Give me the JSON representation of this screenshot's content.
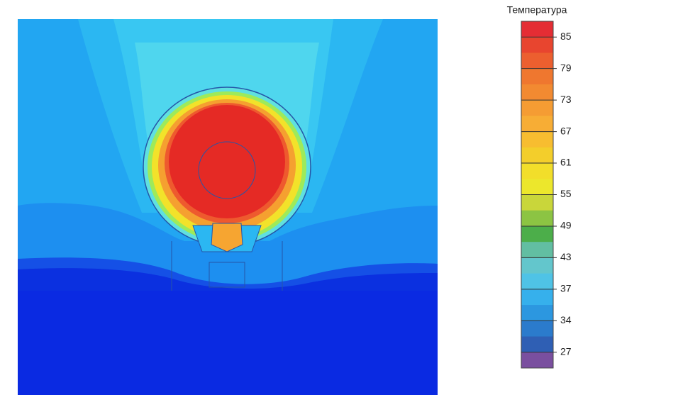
{
  "colorbar": {
    "title": "Температура",
    "ticks": [
      85,
      79,
      73,
      67,
      61,
      55,
      49,
      43,
      37,
      34,
      27
    ],
    "bands": [
      "#e42d34",
      "#e8452f",
      "#ec5f2f",
      "#ef772f",
      "#f28a31",
      "#f59c33",
      "#f7ad35",
      "#f7bd30",
      "#f3ce2b",
      "#f2de2a",
      "#ece72c",
      "#c9d63a",
      "#8cc443",
      "#4cae4a",
      "#62bea2",
      "#63c6cc",
      "#4fc3e6",
      "#36b0ec",
      "#2c97e0",
      "#2b7bcc",
      "#2f5fb4",
      "#7a4f9f"
    ]
  }
}
